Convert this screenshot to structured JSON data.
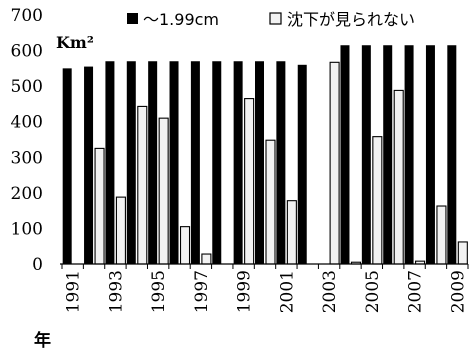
{
  "chart_data": {
    "type": "bar",
    "unit_label": "Km²",
    "xlabel": "年",
    "ylim": [
      0,
      700
    ],
    "yticks": [
      0,
      100,
      200,
      300,
      400,
      500,
      600,
      700
    ],
    "categories": [
      "1991",
      "1992",
      "1993",
      "1994",
      "1995",
      "1996",
      "1997",
      "1998",
      "1999",
      "2000",
      "2001",
      "2002",
      "2003",
      "2004",
      "2005",
      "2006",
      "2007",
      "2008",
      "2009"
    ],
    "x_tick_labels": [
      "1991",
      "1993",
      "1995",
      "1997",
      "1999",
      "2001",
      "2003",
      "2005",
      "2007",
      "2009"
    ],
    "legend_position": "top",
    "series": [
      {
        "name": "～1.99cm",
        "color": "#000000",
        "values": [
          550,
          555,
          570,
          570,
          570,
          570,
          570,
          570,
          570,
          570,
          570,
          560,
          0,
          615,
          615,
          615,
          615,
          615,
          615
        ]
      },
      {
        "name": "沈下が見られない",
        "color": "#f2f2f2",
        "values": [
          0,
          325,
          188,
          443,
          410,
          105,
          28,
          0,
          465,
          348,
          178,
          0,
          567,
          5,
          358,
          488,
          8,
          163,
          62
        ]
      }
    ]
  }
}
